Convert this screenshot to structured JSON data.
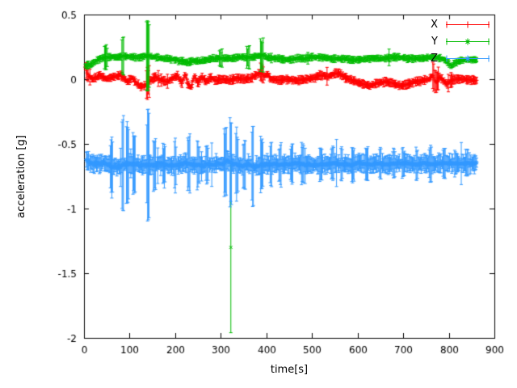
{
  "chart_data": {
    "type": "scatter",
    "style": "errorbars",
    "title": "",
    "xlabel": "time[s]",
    "ylabel": "acceleration [g]",
    "xlim": [
      0,
      900
    ],
    "ylim": [
      -2,
      0.5
    ],
    "xtick_values": [
      0,
      100,
      200,
      300,
      400,
      500,
      600,
      700,
      800,
      900
    ],
    "xtick_labels": [
      "0",
      "100",
      "200",
      "300",
      "400",
      "500",
      "600",
      "700",
      "800",
      "900"
    ],
    "ytick_values": [
      0.5,
      0,
      -0.5,
      -1,
      -1.5,
      -2
    ],
    "ytick_labels": [
      "0.5",
      "0",
      "-0.5",
      "-1",
      "-1.5",
      "-2"
    ],
    "grid": false,
    "legend_position": "top-right",
    "axis_color": "#000000",
    "background": "#ffffff",
    "series": [
      {
        "name": "X",
        "color": "#ff0000",
        "marker": "plus",
        "approx_mean": 0.0,
        "t_start": 3,
        "t_end": 862,
        "dt": 2,
        "err_base": 0.027,
        "noise_amp": [
          0.01,
          0.008
        ],
        "err_jitter": {
          "p": 0.02,
          "extra": 0.06
        },
        "anchors": [
          [
            3,
            0.09
          ],
          [
            10,
            0.02
          ],
          [
            20,
            0.0
          ],
          [
            35,
            0.03
          ],
          [
            50,
            0.0
          ],
          [
            65,
            0.02
          ],
          [
            80,
            0.03
          ],
          [
            95,
            -0.02
          ],
          [
            105,
            0.01
          ],
          [
            115,
            -0.03
          ],
          [
            125,
            -0.06
          ],
          [
            135,
            -0.05
          ],
          [
            145,
            -0.01
          ],
          [
            155,
            0.02
          ],
          [
            165,
            0.0
          ],
          [
            180,
            -0.02
          ],
          [
            195,
            0.01
          ],
          [
            205,
            0.03
          ],
          [
            215,
            -0.03
          ],
          [
            222,
            0.04
          ],
          [
            228,
            -0.04
          ],
          [
            235,
            -0.06
          ],
          [
            242,
            0.03
          ],
          [
            250,
            -0.03
          ],
          [
            258,
            0.02
          ],
          [
            268,
            -0.02
          ],
          [
            278,
            0.01
          ],
          [
            290,
            -0.01
          ],
          [
            305,
            0.0
          ],
          [
            320,
            -0.01
          ],
          [
            335,
            0.01
          ],
          [
            350,
            0.0
          ],
          [
            365,
            0.01
          ],
          [
            378,
            0.03
          ],
          [
            388,
            0.06
          ],
          [
            395,
            0.02
          ],
          [
            402,
            0.04
          ],
          [
            410,
            0.0
          ],
          [
            425,
            -0.01
          ],
          [
            445,
            0.0
          ],
          [
            465,
            -0.01
          ],
          [
            485,
            0.0
          ],
          [
            505,
            0.01
          ],
          [
            520,
            0.03
          ],
          [
            535,
            0.02
          ],
          [
            548,
            0.04
          ],
          [
            558,
            0.05
          ],
          [
            568,
            0.02
          ],
          [
            582,
            0.0
          ],
          [
            598,
            -0.02
          ],
          [
            612,
            -0.04
          ],
          [
            628,
            -0.05
          ],
          [
            642,
            -0.03
          ],
          [
            658,
            -0.02
          ],
          [
            675,
            -0.03
          ],
          [
            695,
            -0.05
          ],
          [
            710,
            -0.04
          ],
          [
            725,
            -0.02
          ],
          [
            742,
            -0.01
          ],
          [
            756,
            0.0
          ],
          [
            765,
            0.03
          ],
          [
            772,
            -0.03
          ],
          [
            780,
            0.02
          ],
          [
            788,
            -0.01
          ],
          [
            796,
            -0.04
          ],
          [
            805,
            -0.01
          ],
          [
            815,
            0.0
          ],
          [
            835,
            0.0
          ],
          [
            862,
            -0.01
          ]
        ],
        "err_spikes": [
          [
            7,
            0.05
          ],
          [
            140,
            0.11
          ],
          [
            390,
            0.06
          ],
          [
            768,
            0.09
          ],
          [
            775,
            0.08
          ],
          [
            805,
            0.05
          ]
        ],
        "outliers": []
      },
      {
        "name": "Y",
        "color": "#00bb00",
        "marker": "cross",
        "approx_mean": 0.16,
        "t_start": 3,
        "t_end": 862,
        "dt": 2,
        "err_base": 0.022,
        "noise_amp": [
          0.01,
          0.008
        ],
        "err_jitter": {
          "p": 0.02,
          "extra": 0.05
        },
        "anchors": [
          [
            3,
            0.1
          ],
          [
            12,
            0.11
          ],
          [
            22,
            0.13
          ],
          [
            35,
            0.16
          ],
          [
            55,
            0.17
          ],
          [
            75,
            0.17
          ],
          [
            90,
            0.18
          ],
          [
            105,
            0.17
          ],
          [
            120,
            0.17
          ],
          [
            138,
            0.18
          ],
          [
            155,
            0.17
          ],
          [
            170,
            0.16
          ],
          [
            185,
            0.16
          ],
          [
            200,
            0.15
          ],
          [
            215,
            0.14
          ],
          [
            228,
            0.13
          ],
          [
            240,
            0.14
          ],
          [
            255,
            0.14
          ],
          [
            268,
            0.15
          ],
          [
            282,
            0.16
          ],
          [
            295,
            0.16
          ],
          [
            310,
            0.16
          ],
          [
            325,
            0.16
          ],
          [
            340,
            0.17
          ],
          [
            355,
            0.17
          ],
          [
            370,
            0.17
          ],
          [
            382,
            0.18
          ],
          [
            392,
            0.19
          ],
          [
            400,
            0.17
          ],
          [
            415,
            0.16
          ],
          [
            430,
            0.16
          ],
          [
            448,
            0.15
          ],
          [
            465,
            0.16
          ],
          [
            482,
            0.16
          ],
          [
            500,
            0.17
          ],
          [
            518,
            0.17
          ],
          [
            535,
            0.16
          ],
          [
            552,
            0.16
          ],
          [
            570,
            0.16
          ],
          [
            588,
            0.15
          ],
          [
            605,
            0.15
          ],
          [
            622,
            0.16
          ],
          [
            640,
            0.16
          ],
          [
            658,
            0.16
          ],
          [
            675,
            0.17
          ],
          [
            692,
            0.17
          ],
          [
            708,
            0.16
          ],
          [
            725,
            0.16
          ],
          [
            742,
            0.16
          ],
          [
            758,
            0.17
          ],
          [
            772,
            0.17
          ],
          [
            785,
            0.16
          ],
          [
            795,
            0.14
          ],
          [
            805,
            0.1
          ],
          [
            812,
            0.12
          ],
          [
            822,
            0.14
          ],
          [
            840,
            0.15
          ],
          [
            862,
            0.15
          ]
        ],
        "err_spikes": [
          [
            48,
            0.08
          ],
          [
            85,
            0.15
          ],
          [
            140,
            0.24
          ],
          [
            300,
            0.06
          ],
          [
            360,
            0.08
          ],
          [
            390,
            0.12
          ]
        ],
        "outliers": [
          {
            "t": 322,
            "value": -1.3,
            "err": 0.66
          }
        ]
      },
      {
        "name": "Z",
        "color": "#3399ff",
        "marker": "asterisk",
        "approx_mean": -0.655,
        "t_start": 5,
        "t_end": 862,
        "dt": 1.6,
        "err_base": 0.058,
        "noise_amp": [
          0.028,
          0.013
        ],
        "err_jitter": {
          "p": 0.05,
          "extra": 0.12
        },
        "anchors": [
          [
            5,
            -0.63
          ],
          [
            20,
            -0.66
          ],
          [
            40,
            -0.65
          ],
          [
            60,
            -0.67
          ],
          [
            80,
            -0.67
          ],
          [
            100,
            -0.65
          ],
          [
            120,
            -0.66
          ],
          [
            140,
            -0.67
          ],
          [
            160,
            -0.66
          ],
          [
            180,
            -0.66
          ],
          [
            200,
            -0.67
          ],
          [
            220,
            -0.65
          ],
          [
            240,
            -0.66
          ],
          [
            260,
            -0.67
          ],
          [
            280,
            -0.66
          ],
          [
            300,
            -0.66
          ],
          [
            315,
            -0.63
          ],
          [
            330,
            -0.66
          ],
          [
            345,
            -0.67
          ],
          [
            360,
            -0.66
          ],
          [
            375,
            -0.68
          ],
          [
            390,
            -0.66
          ],
          [
            405,
            -0.66
          ],
          [
            425,
            -0.66
          ],
          [
            445,
            -0.66
          ],
          [
            465,
            -0.65
          ],
          [
            485,
            -0.66
          ],
          [
            505,
            -0.66
          ],
          [
            525,
            -0.66
          ],
          [
            545,
            -0.65
          ],
          [
            565,
            -0.66
          ],
          [
            585,
            -0.66
          ],
          [
            605,
            -0.65
          ],
          [
            625,
            -0.66
          ],
          [
            645,
            -0.65
          ],
          [
            665,
            -0.66
          ],
          [
            685,
            -0.65
          ],
          [
            705,
            -0.65
          ],
          [
            725,
            -0.66
          ],
          [
            745,
            -0.65
          ],
          [
            765,
            -0.66
          ],
          [
            785,
            -0.65
          ],
          [
            805,
            -0.65
          ],
          [
            825,
            -0.65
          ],
          [
            845,
            -0.65
          ],
          [
            862,
            -0.65
          ]
        ],
        "err_spikes": [
          [
            60,
            0.2
          ],
          [
            85,
            0.32
          ],
          [
            95,
            0.27
          ],
          [
            110,
            0.22
          ],
          [
            140,
            0.37
          ],
          [
            155,
            0.2
          ],
          [
            175,
            0.15
          ],
          [
            200,
            0.18
          ],
          [
            230,
            0.2
          ],
          [
            250,
            0.16
          ],
          [
            270,
            0.14
          ],
          [
            310,
            0.27
          ],
          [
            322,
            0.29
          ],
          [
            335,
            0.24
          ],
          [
            352,
            0.18
          ],
          [
            370,
            0.26
          ],
          [
            390,
            0.2
          ],
          [
            410,
            0.16
          ],
          [
            430,
            0.15
          ],
          [
            455,
            0.14
          ],
          [
            480,
            0.15
          ],
          [
            520,
            0.14
          ],
          [
            545,
            0.13
          ],
          [
            565,
            0.12
          ],
          [
            590,
            0.13
          ],
          [
            620,
            0.12
          ],
          [
            650,
            0.11
          ],
          [
            680,
            0.1
          ],
          [
            700,
            0.1
          ],
          [
            730,
            0.11
          ],
          [
            760,
            0.12
          ],
          [
            790,
            0.1
          ],
          [
            815,
            0.09
          ],
          [
            840,
            0.09
          ]
        ],
        "outliers": []
      }
    ]
  }
}
